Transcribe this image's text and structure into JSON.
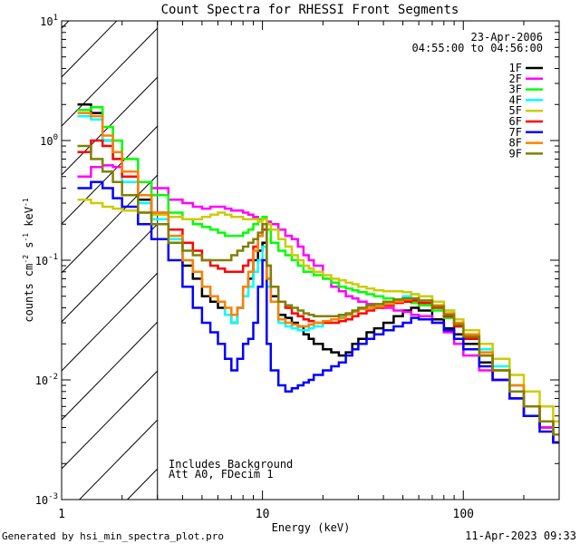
{
  "chart_data": {
    "type": "line",
    "title": "Count Spectra for RHESSI Front Segments",
    "xlabel": "Energy (keV)",
    "ylabel_parts": [
      "counts cm",
      "-2",
      " s",
      "-1",
      " keV",
      "-1"
    ],
    "xscale": "log",
    "yscale": "log",
    "xlim": [
      1,
      300
    ],
    "ylim": [
      0.001,
      10
    ],
    "x_ticks": [
      {
        "value": 1,
        "label": "1"
      },
      {
        "value": 10,
        "label": "10"
      },
      {
        "value": 100,
        "label": "100"
      }
    ],
    "y_ticks": [
      {
        "value": 0.001,
        "base": "10",
        "exp": "-3"
      },
      {
        "value": 0.01,
        "base": "10",
        "exp": "-2"
      },
      {
        "value": 0.1,
        "base": "10",
        "exp": "-1"
      },
      {
        "value": 1,
        "base": "10",
        "exp": "0"
      },
      {
        "value": 10,
        "base": "10",
        "exp": "1"
      }
    ],
    "date_text": "23-Apr-2006",
    "time_text": "04:55:00 to 04:56:00",
    "hatched_region": [
      1,
      3
    ],
    "annotations": [
      "Includes Background",
      "Att A0, FDecim 1"
    ],
    "series": [
      {
        "name": "1F",
        "color": "#000000",
        "x": [
          1.2,
          1.4,
          1.6,
          1.8,
          2.0,
          2.4,
          2.8,
          3.4,
          4.0,
          4.5,
          5.0,
          5.5,
          6.0,
          6.5,
          7.0,
          7.5,
          8.0,
          8.5,
          9.0,
          9.5,
          10.0,
          10.5,
          11.0,
          12,
          13,
          14,
          15,
          16,
          17,
          18,
          20,
          22,
          24,
          26,
          28,
          30,
          33,
          36,
          40,
          45,
          50,
          55,
          60,
          70,
          80,
          90,
          100,
          120,
          140,
          170,
          200,
          240,
          280
        ],
        "values": [
          2.0,
          1.7,
          1.0,
          0.8,
          0.5,
          0.32,
          0.22,
          0.15,
          0.09,
          0.07,
          0.05,
          0.045,
          0.04,
          0.035,
          0.03,
          0.04,
          0.06,
          0.07,
          0.1,
          0.12,
          0.14,
          0.07,
          0.05,
          0.035,
          0.033,
          0.03,
          0.028,
          0.024,
          0.022,
          0.02,
          0.018,
          0.017,
          0.016,
          0.017,
          0.02,
          0.022,
          0.025,
          0.027,
          0.03,
          0.034,
          0.038,
          0.04,
          0.038,
          0.032,
          0.027,
          0.024,
          0.02,
          0.014,
          0.01,
          0.007,
          0.005,
          0.004,
          0.003
        ]
      },
      {
        "name": "2F",
        "color": "#ff00ff",
        "x": [
          1.2,
          1.4,
          1.6,
          1.8,
          2.0,
          2.4,
          2.8,
          3.4,
          4.0,
          4.5,
          5.0,
          5.5,
          6.0,
          6.5,
          7.0,
          7.5,
          8.0,
          8.5,
          9.0,
          9.5,
          10.0,
          10.5,
          11.0,
          12,
          13,
          14,
          15,
          16,
          17,
          18,
          20,
          22,
          24,
          26,
          28,
          30,
          33,
          36,
          40,
          45,
          50,
          55,
          60,
          70,
          80,
          90,
          100,
          120,
          140,
          170,
          200,
          240,
          280
        ],
        "values": [
          0.5,
          0.6,
          0.62,
          0.6,
          0.55,
          0.45,
          0.4,
          0.32,
          0.3,
          0.28,
          0.27,
          0.28,
          0.28,
          0.27,
          0.26,
          0.26,
          0.25,
          0.24,
          0.23,
          0.22,
          0.22,
          0.21,
          0.2,
          0.18,
          0.16,
          0.15,
          0.13,
          0.11,
          0.1,
          0.09,
          0.07,
          0.06,
          0.055,
          0.05,
          0.048,
          0.045,
          0.043,
          0.041,
          0.04,
          0.038,
          0.037,
          0.035,
          0.034,
          0.03,
          0.025,
          0.02,
          0.016,
          0.012,
          0.01,
          0.007,
          0.005,
          0.004,
          0.003
        ]
      },
      {
        "name": "3F",
        "color": "#00ff00",
        "x": [
          1.2,
          1.4,
          1.6,
          1.8,
          2.0,
          2.4,
          2.8,
          3.4,
          4.0,
          4.5,
          5.0,
          5.5,
          6.0,
          6.5,
          7.0,
          7.5,
          8.0,
          8.5,
          9.0,
          9.5,
          10.0,
          10.5,
          11.0,
          12,
          13,
          14,
          15,
          16,
          17,
          18,
          20,
          22,
          24,
          26,
          28,
          30,
          33,
          36,
          40,
          45,
          50,
          55,
          60,
          70,
          80,
          90,
          100,
          120,
          140,
          170,
          200,
          240,
          280
        ],
        "values": [
          1.8,
          1.9,
          1.3,
          1.0,
          0.7,
          0.45,
          0.35,
          0.25,
          0.22,
          0.2,
          0.19,
          0.18,
          0.17,
          0.16,
          0.16,
          0.16,
          0.17,
          0.18,
          0.2,
          0.22,
          0.23,
          0.18,
          0.14,
          0.12,
          0.11,
          0.1,
          0.09,
          0.08,
          0.08,
          0.075,
          0.07,
          0.065,
          0.06,
          0.058,
          0.056,
          0.054,
          0.052,
          0.05,
          0.048,
          0.046,
          0.045,
          0.044,
          0.042,
          0.038,
          0.033,
          0.028,
          0.022,
          0.016,
          0.012,
          0.009,
          0.006,
          0.0045,
          0.0035
        ]
      },
      {
        "name": "4F",
        "color": "#00ffff",
        "x": [
          1.2,
          1.4,
          1.6,
          1.8,
          2.0,
          2.4,
          2.8,
          3.4,
          4.0,
          4.5,
          5.0,
          5.5,
          6.0,
          6.5,
          7.0,
          7.5,
          8.0,
          8.5,
          9.0,
          9.5,
          10.0,
          10.5,
          11.0,
          12,
          13,
          14,
          15,
          16,
          17,
          18,
          20,
          22,
          24,
          26,
          28,
          30,
          33,
          36,
          40,
          45,
          50,
          55,
          60,
          70,
          80,
          90,
          100,
          120,
          140,
          170,
          200,
          240,
          280
        ],
        "values": [
          1.6,
          1.5,
          1.0,
          0.7,
          0.45,
          0.3,
          0.22,
          0.15,
          0.1,
          0.08,
          0.06,
          0.05,
          0.045,
          0.035,
          0.03,
          0.04,
          0.05,
          0.06,
          0.08,
          0.1,
          0.13,
          0.06,
          0.045,
          0.03,
          0.028,
          0.027,
          0.026,
          0.026,
          0.027,
          0.028,
          0.03,
          0.032,
          0.034,
          0.036,
          0.038,
          0.04,
          0.042,
          0.043,
          0.045,
          0.047,
          0.05,
          0.052,
          0.05,
          0.045,
          0.038,
          0.032,
          0.026,
          0.018,
          0.013,
          0.009,
          0.006,
          0.0045,
          0.0035
        ]
      },
      {
        "name": "5F",
        "color": "#cccc00",
        "x": [
          1.2,
          1.4,
          1.6,
          1.8,
          2.0,
          2.4,
          2.8,
          3.4,
          4.0,
          4.5,
          5.0,
          5.5,
          6.0,
          6.5,
          7.0,
          7.5,
          8.0,
          8.5,
          9.0,
          9.5,
          10.0,
          10.5,
          11.0,
          12,
          13,
          14,
          15,
          16,
          17,
          18,
          20,
          22,
          24,
          26,
          28,
          30,
          33,
          36,
          40,
          45,
          50,
          55,
          60,
          70,
          80,
          90,
          100,
          120,
          140,
          170,
          200,
          240,
          280
        ],
        "values": [
          0.32,
          0.3,
          0.28,
          0.27,
          0.26,
          0.25,
          0.24,
          0.23,
          0.22,
          0.22,
          0.23,
          0.24,
          0.25,
          0.24,
          0.23,
          0.23,
          0.22,
          0.22,
          0.22,
          0.21,
          0.22,
          0.2,
          0.18,
          0.15,
          0.13,
          0.11,
          0.1,
          0.09,
          0.085,
          0.08,
          0.075,
          0.07,
          0.068,
          0.065,
          0.063,
          0.06,
          0.058,
          0.056,
          0.055,
          0.055,
          0.054,
          0.052,
          0.05,
          0.045,
          0.038,
          0.032,
          0.026,
          0.02,
          0.015,
          0.011,
          0.008,
          0.006,
          0.0045
        ]
      },
      {
        "name": "6F",
        "color": "#ff0000",
        "x": [
          1.2,
          1.4,
          1.6,
          1.8,
          2.0,
          2.4,
          2.8,
          3.4,
          4.0,
          4.5,
          5.0,
          5.5,
          6.0,
          6.5,
          7.0,
          7.5,
          8.0,
          8.5,
          9.0,
          9.5,
          10.0,
          10.5,
          11.0,
          12,
          13,
          14,
          15,
          16,
          17,
          18,
          20,
          22,
          24,
          26,
          28,
          30,
          33,
          36,
          40,
          45,
          50,
          55,
          60,
          70,
          80,
          90,
          100,
          120,
          140,
          170,
          200,
          240,
          280
        ],
        "values": [
          0.8,
          1.0,
          0.9,
          0.7,
          0.5,
          0.35,
          0.25,
          0.18,
          0.14,
          0.12,
          0.1,
          0.09,
          0.085,
          0.08,
          0.08,
          0.08,
          0.09,
          0.1,
          0.13,
          0.16,
          0.18,
          0.09,
          0.06,
          0.045,
          0.04,
          0.036,
          0.034,
          0.032,
          0.031,
          0.03,
          0.03,
          0.03,
          0.031,
          0.032,
          0.034,
          0.036,
          0.038,
          0.04,
          0.042,
          0.044,
          0.045,
          0.046,
          0.044,
          0.04,
          0.034,
          0.028,
          0.022,
          0.016,
          0.012,
          0.008,
          0.006,
          0.0045,
          0.0035
        ]
      },
      {
        "name": "7F",
        "color": "#0000ff",
        "x": [
          1.2,
          1.4,
          1.6,
          1.8,
          2.0,
          2.4,
          2.8,
          3.4,
          4.0,
          4.5,
          5.0,
          5.5,
          6.0,
          6.5,
          7.0,
          7.5,
          8.0,
          8.5,
          9.0,
          9.5,
          10.0,
          10.5,
          11.0,
          12,
          13,
          14,
          15,
          16,
          17,
          18,
          20,
          22,
          24,
          26,
          28,
          30,
          33,
          36,
          40,
          45,
          50,
          55,
          60,
          70,
          80,
          90,
          100,
          120,
          140,
          170,
          200,
          240,
          280
        ],
        "values": [
          0.4,
          0.45,
          0.4,
          0.33,
          0.28,
          0.2,
          0.15,
          0.1,
          0.06,
          0.04,
          0.03,
          0.025,
          0.02,
          0.015,
          0.012,
          0.015,
          0.02,
          0.022,
          0.03,
          0.06,
          0.1,
          0.02,
          0.012,
          0.009,
          0.008,
          0.0085,
          0.009,
          0.0095,
          0.01,
          0.011,
          0.012,
          0.013,
          0.014,
          0.016,
          0.018,
          0.02,
          0.022,
          0.024,
          0.026,
          0.028,
          0.03,
          0.033,
          0.032,
          0.03,
          0.026,
          0.022,
          0.018,
          0.013,
          0.01,
          0.007,
          0.005,
          0.0037,
          0.003
        ]
      },
      {
        "name": "8F",
        "color": "#ff8000",
        "x": [
          1.2,
          1.4,
          1.6,
          1.8,
          2.0,
          2.4,
          2.8,
          3.4,
          4.0,
          4.5,
          5.0,
          5.5,
          6.0,
          6.5,
          7.0,
          7.5,
          8.0,
          8.5,
          9.0,
          9.5,
          10.0,
          10.5,
          11.0,
          12,
          13,
          14,
          15,
          16,
          17,
          18,
          20,
          22,
          24,
          26,
          28,
          30,
          33,
          36,
          40,
          45,
          50,
          55,
          60,
          70,
          80,
          90,
          100,
          120,
          140,
          170,
          200,
          240,
          280
        ],
        "values": [
          1.7,
          1.6,
          1.1,
          0.8,
          0.55,
          0.35,
          0.25,
          0.16,
          0.1,
          0.08,
          0.06,
          0.05,
          0.045,
          0.04,
          0.035,
          0.04,
          0.06,
          0.08,
          0.12,
          0.16,
          0.2,
          0.07,
          0.045,
          0.032,
          0.03,
          0.029,
          0.028,
          0.028,
          0.029,
          0.03,
          0.031,
          0.032,
          0.033,
          0.035,
          0.037,
          0.039,
          0.04,
          0.041,
          0.043,
          0.045,
          0.047,
          0.048,
          0.046,
          0.042,
          0.036,
          0.03,
          0.024,
          0.017,
          0.012,
          0.009,
          0.006,
          0.0045,
          0.0035
        ]
      },
      {
        "name": "9F",
        "color": "#808000",
        "x": [
          1.2,
          1.4,
          1.6,
          1.8,
          2.0,
          2.4,
          2.8,
          3.4,
          4.0,
          4.5,
          5.0,
          5.5,
          6.0,
          6.5,
          7.0,
          7.5,
          8.0,
          8.5,
          9.0,
          9.5,
          10.0,
          10.5,
          11.0,
          12,
          13,
          14,
          15,
          16,
          17,
          18,
          20,
          22,
          24,
          26,
          28,
          30,
          33,
          36,
          40,
          45,
          50,
          55,
          60,
          70,
          80,
          90,
          100,
          120,
          140,
          170,
          200,
          240,
          280
        ],
        "values": [
          0.9,
          0.7,
          0.55,
          0.45,
          0.35,
          0.25,
          0.2,
          0.14,
          0.12,
          0.11,
          0.1,
          0.1,
          0.1,
          0.1,
          0.11,
          0.12,
          0.13,
          0.14,
          0.15,
          0.17,
          0.2,
          0.09,
          0.06,
          0.045,
          0.042,
          0.04,
          0.038,
          0.036,
          0.035,
          0.034,
          0.034,
          0.034,
          0.035,
          0.036,
          0.038,
          0.04,
          0.042,
          0.043,
          0.045,
          0.047,
          0.048,
          0.048,
          0.046,
          0.041,
          0.035,
          0.029,
          0.023,
          0.016,
          0.012,
          0.008,
          0.006,
          0.0045,
          0.0035
        ]
      }
    ]
  },
  "footer": {
    "generated_by": "Generated by hsi_min_spectra_plot.pro",
    "timestamp": "11-Apr-2023 09:33"
  }
}
